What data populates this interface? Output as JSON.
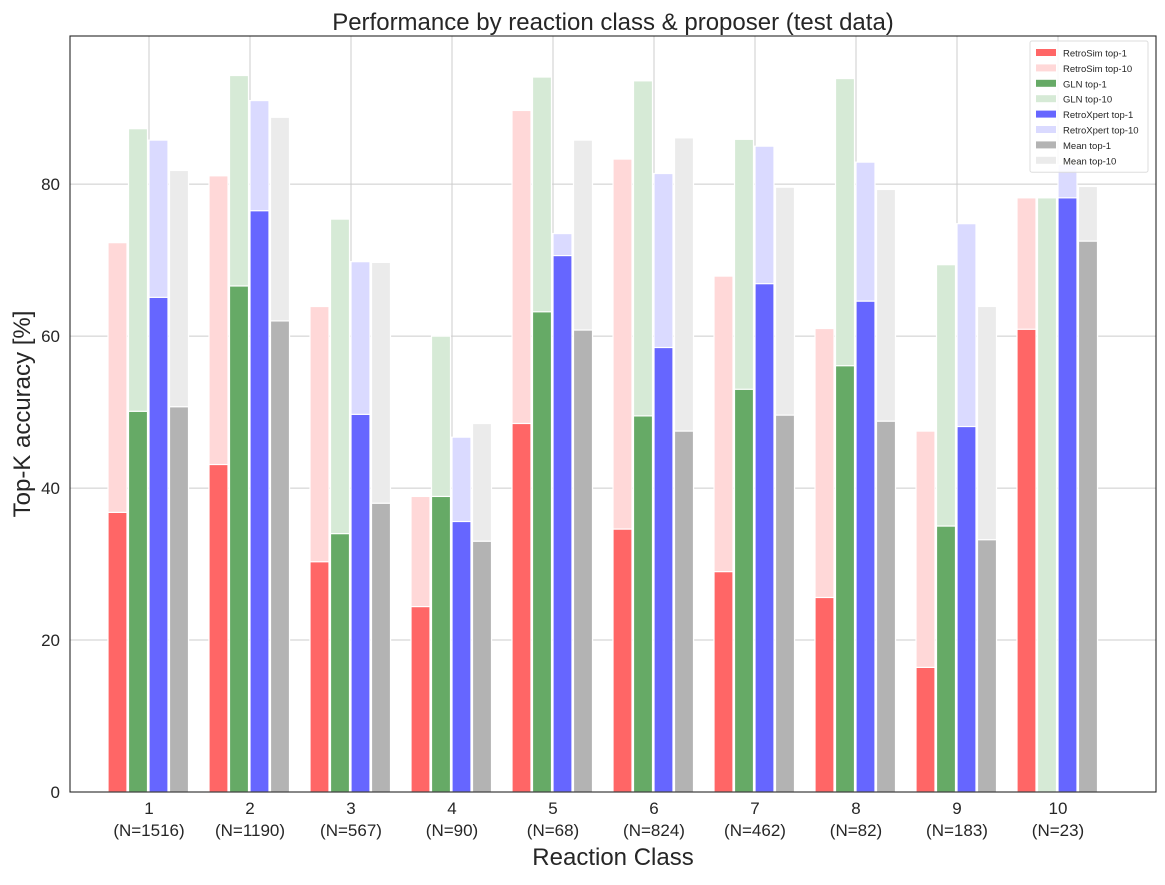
{
  "chart_data": {
    "type": "bar",
    "title": "Performance by reaction class & proposer (test data)",
    "xlabel": "Reaction Class",
    "ylabel": "Top-K accuracy [%]",
    "ylim": [
      0,
      99.5
    ],
    "yticks": [
      0,
      20,
      40,
      60,
      80
    ],
    "grid": true,
    "legend_position": "top-right",
    "categories": [
      "1",
      "2",
      "3",
      "4",
      "5",
      "6",
      "7",
      "8",
      "9",
      "10"
    ],
    "category_counts": [
      "(N=1516)",
      "(N=1190)",
      "(N=567)",
      "(N=90)",
      "(N=68)",
      "(N=824)",
      "(N=462)",
      "(N=82)",
      "(N=183)",
      "(N=23)"
    ],
    "series": [
      {
        "name": "RetroSim top-1",
        "color": "#ff6666",
        "group": 0,
        "values": [
          36.8,
          43.1,
          30.3,
          24.4,
          48.5,
          34.6,
          29.0,
          25.6,
          16.4,
          60.9
        ]
      },
      {
        "name": "RetroSim top-10",
        "color": "#ffd8d8",
        "group": 0,
        "values": [
          72.3,
          81.1,
          63.9,
          38.9,
          89.7,
          83.3,
          67.9,
          61.0,
          47.5,
          78.2
        ]
      },
      {
        "name": "GLN top-1",
        "color": "#66aa66",
        "group": 1,
        "values": [
          50.1,
          66.6,
          34.0,
          38.9,
          63.2,
          49.5,
          53.0,
          56.1,
          35.0,
          78.2
        ]
      },
      {
        "name": "GLN top-10",
        "color": "#d6ead6",
        "group": 1,
        "values": [
          87.3,
          94.3,
          75.4,
          60.0,
          94.1,
          93.6,
          85.9,
          93.9,
          69.4,
          78.2
        ]
      },
      {
        "name": "RetroXpert top-1",
        "color": "#6666ff",
        "group": 2,
        "values": [
          65.1,
          76.5,
          49.7,
          35.6,
          70.6,
          58.5,
          66.9,
          64.6,
          48.1,
          78.2
        ]
      },
      {
        "name": "RetroXpert top-10",
        "color": "#dadaff",
        "group": 2,
        "values": [
          85.8,
          91.0,
          69.8,
          46.7,
          73.5,
          81.4,
          85.0,
          82.9,
          74.8,
          82.6
        ]
      },
      {
        "name": "Mean top-1",
        "color": "#b3b3b3",
        "group": 3,
        "values": [
          50.7,
          62.0,
          38.0,
          33.0,
          60.8,
          47.5,
          49.6,
          48.8,
          33.2,
          72.5
        ]
      },
      {
        "name": "Mean top-10",
        "color": "#ebebeb",
        "group": 3,
        "values": [
          81.8,
          88.8,
          69.7,
          48.5,
          85.8,
          86.1,
          79.6,
          79.3,
          63.9,
          79.7
        ]
      }
    ]
  }
}
